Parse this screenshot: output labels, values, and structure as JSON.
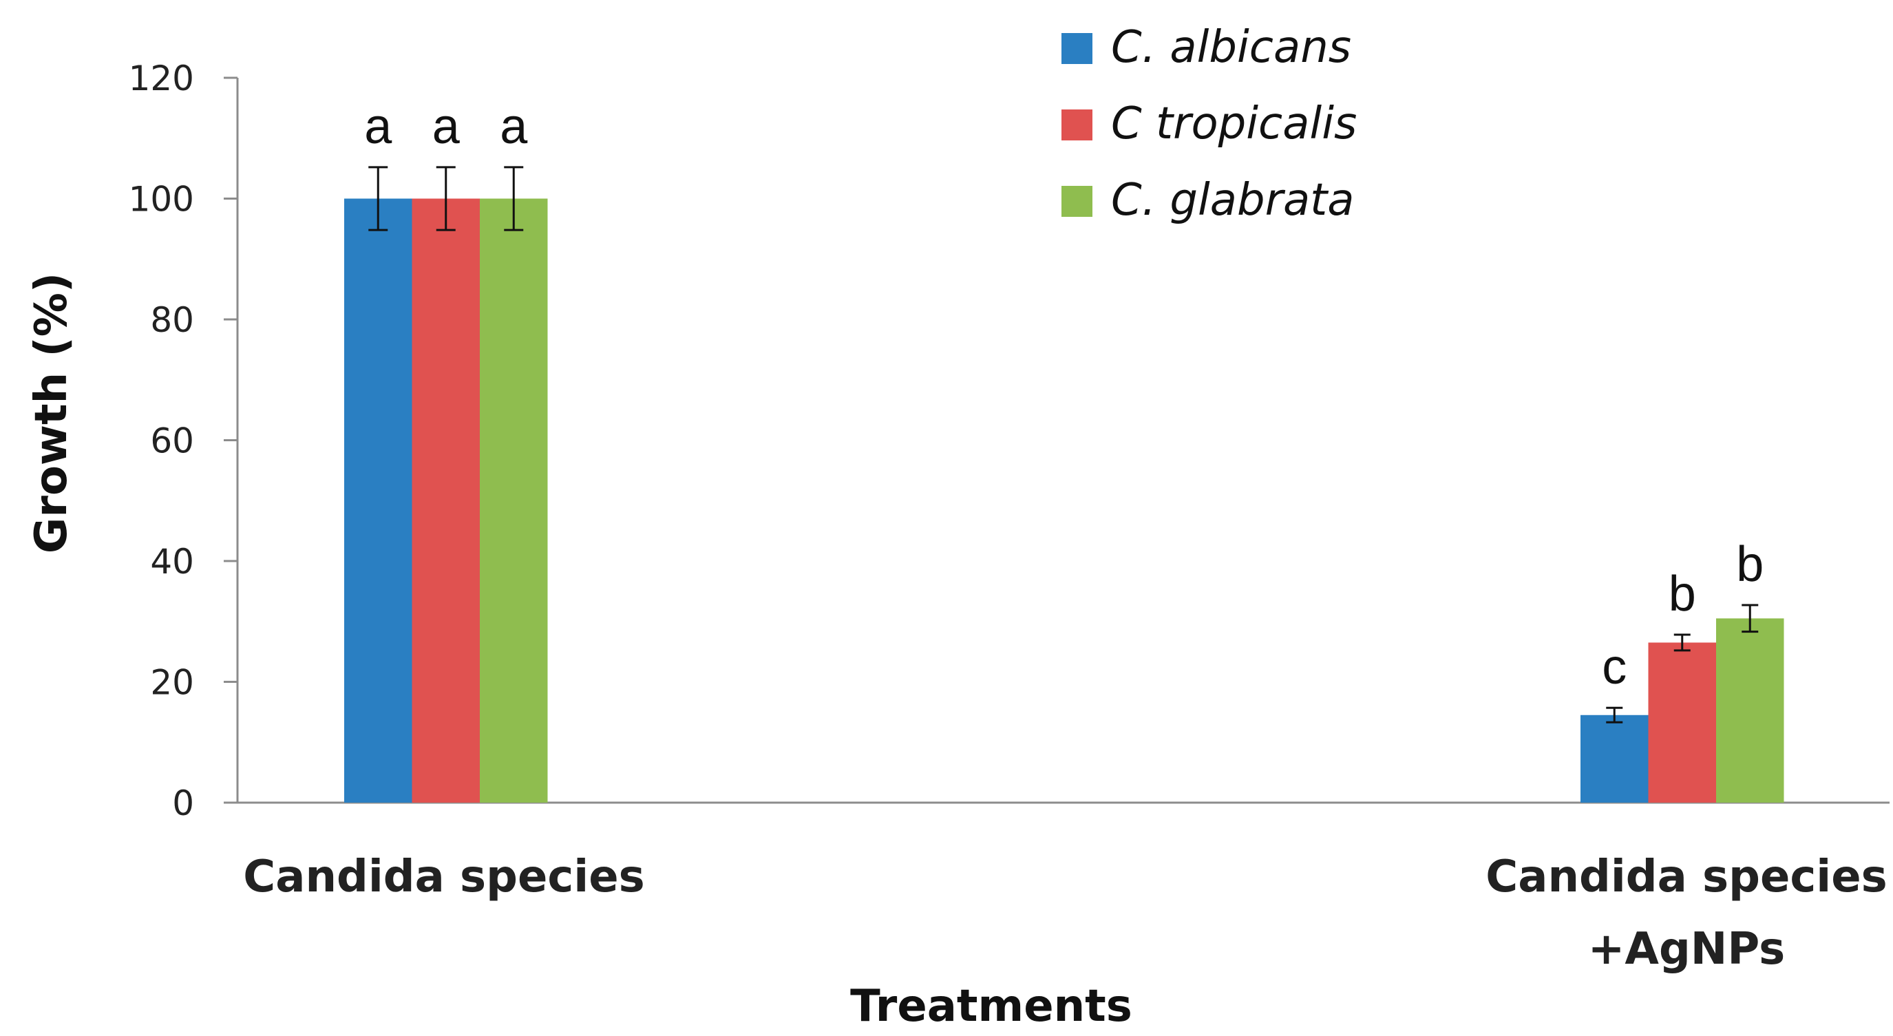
{
  "chart_data": {
    "type": "bar",
    "title": "",
    "xlabel": "Treatments",
    "ylabel": "Growth (%)",
    "ylim": [
      0,
      120
    ],
    "yticks": [
      "0",
      "20",
      "40",
      "60",
      "80",
      "100",
      "120"
    ],
    "categories": [
      [
        "Candida species"
      ],
      [
        "Candida species",
        "+AgNPs"
      ]
    ],
    "series": [
      {
        "name": "C. albicans",
        "color": "#2a7fc2",
        "values": [
          100,
          14.5
        ],
        "errors": [
          5.2,
          1.2
        ],
        "letters": [
          "a",
          "c"
        ]
      },
      {
        "name": "C tropicalis",
        "color": "#e05250",
        "values": [
          100,
          26.5
        ],
        "errors": [
          5.2,
          1.3
        ],
        "letters": [
          "a",
          "b"
        ]
      },
      {
        "name": "C. glabrata",
        "color": "#8fbd4f",
        "values": [
          100,
          30.5
        ],
        "errors": [
          5.2,
          2.2
        ],
        "letters": [
          "a",
          "b"
        ]
      }
    ],
    "legend_position": "top-center"
  }
}
